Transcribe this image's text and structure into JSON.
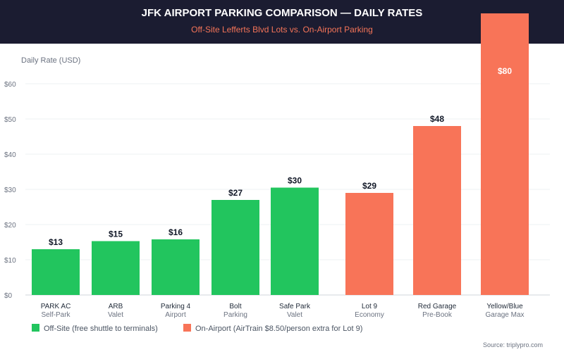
{
  "title": "JFK AIRPORT PARKING COMPARISON — DAILY RATES",
  "subtitle": "Off-Site Lefferts Blvd Lots vs. On-Airport Parking",
  "source": "Source: triplypro.com",
  "chart_data": {
    "type": "bar",
    "title": "JFK AIRPORT PARKING COMPARISON — DAILY RATES",
    "ylabel": "Daily Rate (USD)",
    "ylim": [
      0,
      60
    ],
    "yticks": [
      "$0",
      "$10",
      "$20",
      "$30",
      "$40",
      "$50",
      "$60"
    ],
    "grid": true,
    "legend_placement": "bottom-left",
    "categories": [
      {
        "name": "PARK AC",
        "sub": "Self-Park",
        "value": 13,
        "label": "$13",
        "group": "off"
      },
      {
        "name": "ARB",
        "sub": "Valet",
        "value": 15.3,
        "label": "$15",
        "group": "off"
      },
      {
        "name": "Parking 4",
        "sub": "Airport",
        "value": 15.8,
        "label": "$16",
        "group": "off"
      },
      {
        "name": "Bolt",
        "sub": "Parking",
        "value": 27,
        "label": "$27",
        "group": "off"
      },
      {
        "name": "Safe Park",
        "sub": "Valet",
        "value": 30.5,
        "label": "$30",
        "group": "off"
      },
      {
        "name": "Lot 9",
        "sub": "Economy",
        "value": 29,
        "label": "$29",
        "group": "on"
      },
      {
        "name": "Red Garage",
        "sub": "Pre-Book",
        "value": 48,
        "label": "$48",
        "group": "on"
      },
      {
        "name": "Yellow/Blue",
        "sub": "Garage Max",
        "value": 80,
        "label": "$80",
        "group": "on"
      }
    ],
    "legend": [
      {
        "key": "off",
        "label": "Off-Site (free shuttle to terminals)",
        "color": "#22c55e"
      },
      {
        "key": "on",
        "label": "On-Airport (AirTrain $8.50/person extra for Lot 9)",
        "color": "#f87458"
      }
    ]
  }
}
